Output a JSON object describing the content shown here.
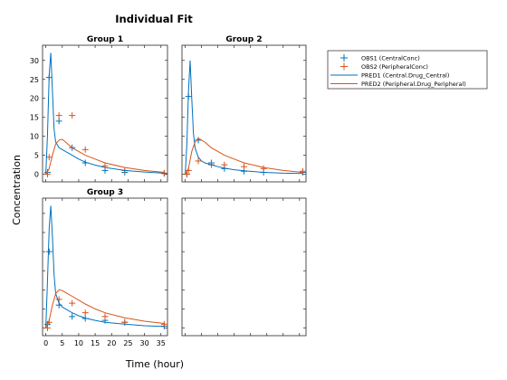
{
  "figure": {
    "title": "Individual Fit",
    "xlabel": "Time (hour)",
    "ylabel": "Concentration"
  },
  "legend": {
    "placement": "top-right",
    "entries": [
      {
        "label": "OBS1 (CentralConc)",
        "kind": "marker",
        "color": "#0072BD"
      },
      {
        "label": "OBS2 (PeripheralConc)",
        "kind": "marker",
        "color": "#D95319"
      },
      {
        "label": "PRED1 (Central.Drug_Central)",
        "kind": "line",
        "color": "#0072BD"
      },
      {
        "label": "PRED2 (Peripheral.Drug_Peripheral)",
        "kind": "line",
        "color": "#D95319"
      }
    ]
  },
  "colors": {
    "central": "#0072BD",
    "peripheral": "#D95319"
  },
  "chart_data": [
    {
      "type": "line",
      "title": "Group 1",
      "xlim": [
        -1,
        37
      ],
      "ylim": [
        -2,
        34
      ],
      "yticks": [
        "0",
        "5",
        "10",
        "15",
        "20",
        "25",
        "30"
      ],
      "xticks": [],
      "series": [
        {
          "name": "OBS1 (CentralConc)",
          "kind": "scatter",
          "x": [
            0.5,
            1,
            4,
            8,
            12,
            18,
            24,
            36
          ],
          "y": [
            0.5,
            25.5,
            14,
            7,
            3,
            1,
            0.5,
            0.2
          ]
        },
        {
          "name": "OBS2 (PeripheralConc)",
          "kind": "scatter",
          "x": [
            0.5,
            1,
            4,
            8,
            12,
            18,
            24,
            36
          ],
          "y": [
            0,
            4.5,
            15.5,
            15.5,
            6.5,
            2.2,
            1,
            0.3
          ]
        },
        {
          "name": "PRED1 (Central.Drug_Central)",
          "kind": "line",
          "x": [
            0,
            0.5,
            1,
            1.5,
            2,
            2.5,
            3,
            4,
            5,
            6,
            8,
            10,
            12,
            15,
            18,
            24,
            30,
            36
          ],
          "y": [
            0,
            10,
            26,
            32,
            22,
            12,
            8.5,
            7,
            6.5,
            6,
            5,
            4,
            3.2,
            2.4,
            1.8,
            1,
            0.6,
            0.3
          ]
        },
        {
          "name": "PRED2 (Peripheral.Drug_Peripheral)",
          "kind": "line",
          "x": [
            0,
            1,
            2,
            3,
            4,
            5,
            6,
            8,
            10,
            12,
            15,
            18,
            24,
            30,
            36
          ],
          "y": [
            0,
            1.5,
            5,
            8,
            9,
            9.2,
            8.5,
            7,
            6,
            5,
            4,
            3,
            1.8,
            1,
            0.5
          ]
        }
      ]
    },
    {
      "type": "line",
      "title": "Group 2",
      "xlim": [
        -1,
        37
      ],
      "ylim": [
        -2,
        34
      ],
      "yticks": [],
      "xticks": [],
      "series": [
        {
          "name": "OBS1 (CentralConc)",
          "kind": "scatter",
          "x": [
            0.5,
            1,
            4,
            8,
            12,
            18,
            24,
            36
          ],
          "y": [
            0,
            20.5,
            9,
            3,
            1.5,
            0.8,
            0.5,
            0.5
          ]
        },
        {
          "name": "OBS2 (PeripheralConc)",
          "kind": "scatter",
          "x": [
            0.5,
            1,
            4,
            8,
            12,
            18,
            24,
            36
          ],
          "y": [
            0,
            1,
            3.5,
            2.5,
            2.5,
            2,
            1.5,
            0.8
          ]
        },
        {
          "name": "PRED1 (Central.Drug_Central)",
          "kind": "line",
          "x": [
            0,
            0.5,
            1,
            1.5,
            2,
            2.5,
            3,
            4,
            5,
            6,
            8,
            10,
            12,
            15,
            18,
            24,
            30,
            36
          ],
          "y": [
            0,
            8,
            22,
            30,
            20,
            11,
            7,
            4.5,
            3.5,
            3,
            2.5,
            2,
            1.6,
            1.2,
            0.9,
            0.5,
            0.3,
            0.2
          ]
        },
        {
          "name": "PRED2 (Peripheral.Drug_Peripheral)",
          "kind": "line",
          "x": [
            0,
            1,
            2,
            3,
            4,
            5,
            6,
            8,
            10,
            12,
            15,
            18,
            24,
            30,
            36
          ],
          "y": [
            0,
            1.5,
            6,
            8.5,
            9.5,
            9,
            8.5,
            7,
            6,
            5,
            4,
            3,
            1.8,
            1,
            0.5
          ]
        }
      ]
    },
    {
      "type": "line",
      "title": "Group 3",
      "xlim": [
        -1,
        37
      ],
      "ylim": [
        -2,
        34
      ],
      "yticks": [],
      "xticks": [
        "0",
        "5",
        "10",
        "15",
        "20",
        "25",
        "30",
        "35"
      ],
      "series": [
        {
          "name": "OBS1 (CentralConc)",
          "kind": "scatter",
          "x": [
            0.5,
            1,
            4,
            8,
            12,
            18,
            24,
            36
          ],
          "y": [
            1,
            20,
            6,
            3,
            2.5,
            2,
            1.5,
            0.5
          ]
        },
        {
          "name": "OBS2 (PeripheralConc)",
          "kind": "scatter",
          "x": [
            0.5,
            1,
            4,
            8,
            12,
            18,
            24,
            36
          ],
          "y": [
            0,
            1.5,
            7.5,
            6.5,
            4,
            3,
            1.5,
            1
          ]
        },
        {
          "name": "PRED1 (Central.Drug_Central)",
          "kind": "line",
          "x": [
            0,
            0.5,
            1,
            1.5,
            2,
            2.5,
            3,
            4,
            5,
            6,
            8,
            10,
            12,
            15,
            18,
            24,
            30,
            36
          ],
          "y": [
            0,
            12,
            26,
            32,
            24,
            14,
            9,
            6.5,
            5.5,
            5,
            4,
            3.2,
            2.6,
            2,
            1.5,
            1,
            0.6,
            0.4
          ]
        },
        {
          "name": "PRED2 (Peripheral.Drug_Peripheral)",
          "kind": "line",
          "x": [
            0,
            1,
            2,
            3,
            4,
            5,
            6,
            8,
            10,
            12,
            15,
            18,
            24,
            30,
            36
          ],
          "y": [
            0,
            2,
            6,
            9,
            10,
            9.8,
            9.3,
            8.3,
            7.3,
            6.3,
            5,
            4,
            2.7,
            1.8,
            1.2
          ]
        }
      ]
    },
    {
      "type": "line",
      "title": "",
      "xlim": [
        -1,
        37
      ],
      "ylim": [
        -2,
        34
      ],
      "yticks": [],
      "xticks": [],
      "series": []
    }
  ]
}
